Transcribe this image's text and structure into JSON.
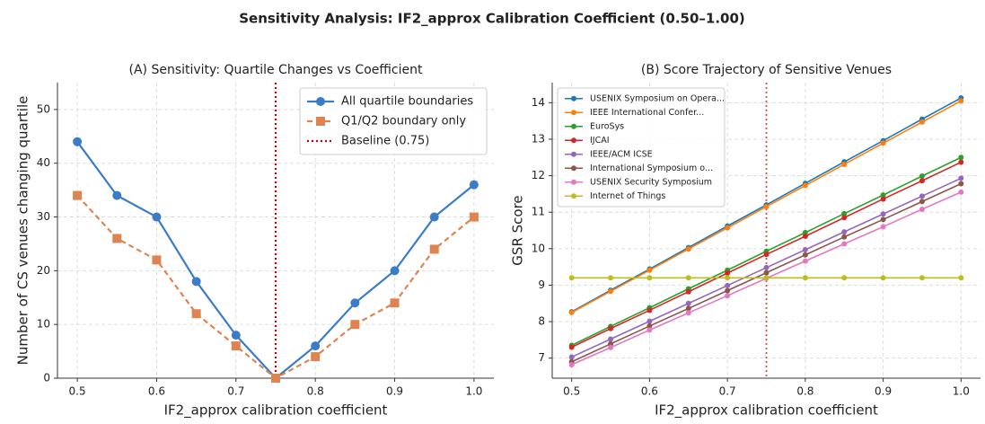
{
  "title": "Sensitivity Analysis: IF2_approx Calibration Coefficient (0.50–1.00)",
  "chart_data": [
    {
      "type": "line",
      "title": "(A) Sensitivity: Quartile Changes vs Coefficient",
      "xlabel": "IF2_approx calibration coefficient",
      "ylabel": "Number of CS venues changing quartile",
      "x": [
        0.5,
        0.55,
        0.6,
        0.65,
        0.7,
        0.75,
        0.8,
        0.85,
        0.9,
        0.95,
        1.0
      ],
      "series": [
        {
          "name": "All quartile boundaries",
          "color": "#3a7cc8",
          "marker": "circle",
          "linestyle": "solid",
          "values": [
            44,
            34,
            30,
            18,
            8,
            0,
            6,
            14,
            20,
            30,
            36
          ]
        },
        {
          "name": "Q1/Q2 boundary only",
          "color": "#dd8452",
          "marker": "square",
          "linestyle": "dashed",
          "values": [
            34,
            26,
            22,
            12,
            6,
            0,
            4,
            10,
            14,
            24,
            30
          ]
        }
      ],
      "baseline": {
        "name": "Baseline (0.75)",
        "value": 0.75,
        "color": "#cc0000"
      },
      "xlim": [
        0.475,
        1.025
      ],
      "xticks": [
        0.5,
        0.6,
        0.7,
        0.8,
        0.9,
        {
          "value": 1.0,
          "label": "1.0"
        }
      ],
      "ylim": [
        0,
        55
      ],
      "yticks": [
        0,
        10,
        20,
        30,
        40,
        50
      ],
      "grid": true,
      "legend": "upper right"
    },
    {
      "type": "line",
      "title": "(B) Score Trajectory of Sensitive Venues",
      "xlabel": "IF2_approx calibration coefficient",
      "ylabel": "GSR Score",
      "x": [
        0.5,
        0.55,
        0.6,
        0.65,
        0.7,
        0.75,
        0.8,
        0.85,
        0.9,
        0.95,
        1.0
      ],
      "series": [
        {
          "name": "USENIX Symposium on Opera...",
          "color": "#1f77b4",
          "marker": "circle",
          "linestyle": "solid",
          "values": [
            8.27,
            8.86,
            9.44,
            10.03,
            10.62,
            11.2,
            11.79,
            12.38,
            12.96,
            13.55,
            14.13
          ]
        },
        {
          "name": "IEEE International Confer...",
          "color": "#ff7f0e",
          "marker": "circle",
          "linestyle": "solid",
          "values": [
            8.25,
            8.83,
            9.41,
            9.99,
            10.57,
            11.15,
            11.73,
            12.31,
            12.89,
            13.47,
            14.05
          ]
        },
        {
          "name": "EuroSys",
          "color": "#2ca02c",
          "marker": "circle",
          "linestyle": "solid",
          "values": [
            7.35,
            7.87,
            8.38,
            8.9,
            9.41,
            9.93,
            10.44,
            10.96,
            11.47,
            11.99,
            12.5
          ]
        },
        {
          "name": "IJCAI",
          "color": "#d62728",
          "marker": "circle",
          "linestyle": "solid",
          "values": [
            7.3,
            7.81,
            8.31,
            8.82,
            9.33,
            9.84,
            10.34,
            10.85,
            11.36,
            11.86,
            12.37
          ]
        },
        {
          "name": "IEEE/ACM ICSE",
          "color": "#9467bd",
          "marker": "circle",
          "linestyle": "solid",
          "values": [
            7.03,
            7.52,
            8.01,
            8.5,
            8.99,
            9.48,
            9.97,
            10.46,
            10.95,
            11.44,
            11.93
          ]
        },
        {
          "name": "International Symposium o...",
          "color": "#8c564b",
          "marker": "circle",
          "linestyle": "solid",
          "values": [
            6.9,
            7.39,
            7.88,
            8.36,
            8.85,
            9.34,
            9.83,
            10.32,
            10.8,
            11.29,
            11.78
          ]
        },
        {
          "name": "USENIX Security Symposium",
          "color": "#e377c2",
          "marker": "circle",
          "linestyle": "solid",
          "values": [
            6.82,
            7.29,
            7.77,
            8.24,
            8.71,
            9.19,
            9.66,
            10.13,
            10.6,
            11.08,
            11.55
          ]
        },
        {
          "name": "Internet of Things",
          "color": "#bcbd22",
          "marker": "circle",
          "linestyle": "solid",
          "values": [
            9.2,
            9.2,
            9.2,
            9.2,
            9.2,
            9.2,
            9.2,
            9.2,
            9.2,
            9.2,
            9.2
          ]
        }
      ],
      "baseline": {
        "value": 0.75,
        "color": "#d9534f"
      },
      "xlim": [
        0.475,
        1.025
      ],
      "xticks": [
        0.5,
        0.6,
        0.7,
        0.8,
        0.9,
        {
          "value": 1.0,
          "label": "1.0"
        }
      ],
      "ylim": [
        6.45,
        14.55
      ],
      "yticks": [
        7,
        8,
        9,
        10,
        11,
        12,
        13,
        14
      ],
      "grid": true,
      "legend": "upper left"
    }
  ]
}
